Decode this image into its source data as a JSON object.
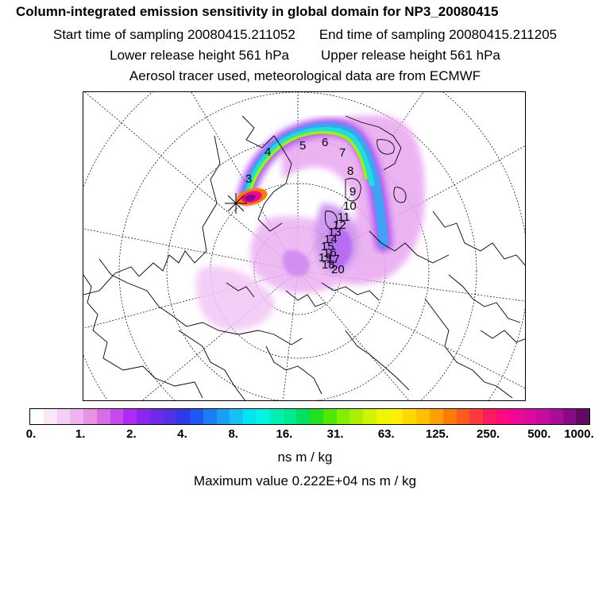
{
  "title": "Column-integrated emission sensitivity in global domain for NP3_20080415",
  "sampling": {
    "start_label": "Start time of sampling 20080415.211052",
    "end_label": "End time of sampling 20080415.211205"
  },
  "release": {
    "lower_label": "Lower release height  561 hPa",
    "upper_label": "Upper release height  561 hPa"
  },
  "info": "Aerosol tracer used, meteorological data are from ECMWF",
  "map": {
    "projection": "north-polar-stereographic",
    "release_marker": "release-point-star-icon",
    "trajectory_labels": [
      "3",
      "4",
      "5",
      "6",
      "7",
      "8",
      "9",
      "10",
      "11",
      "12",
      "13",
      "14",
      "15",
      "16",
      "17",
      "18",
      "19",
      "20"
    ]
  },
  "colorbar": {
    "colors": [
      "#ffffff",
      "#fbe6fb",
      "#f5cef5",
      "#efb4ef",
      "#e693e6",
      "#d66ce6",
      "#c64bef",
      "#b129f5",
      "#8a26ef",
      "#6e2ae6",
      "#5032e6",
      "#2d3ae8",
      "#1f58f0",
      "#1b7cf4",
      "#17a0f6",
      "#14c3f6",
      "#00e6f0",
      "#00f6e0",
      "#00f0b4",
      "#00e890",
      "#00e060",
      "#20e020",
      "#4ee800",
      "#80f000",
      "#a8f000",
      "#d0f400",
      "#eef600",
      "#fff000",
      "#ffd800",
      "#ffc000",
      "#ffa000",
      "#ff7c00",
      "#ff5a1e",
      "#ff3a3e",
      "#ff1a60",
      "#ff0a7e",
      "#f00894",
      "#de0a9e",
      "#c40c9e",
      "#a80c98",
      "#880a88",
      "#600a60"
    ],
    "tick_labels": [
      "0.",
      "1.",
      "2.",
      "4.",
      "8.",
      "16.",
      "31.",
      "63.",
      "125.",
      "250.",
      "500.",
      "1000."
    ],
    "unit": "ns m / kg"
  },
  "maximum_label": "Maximum value  0.222E+04 ns m / kg"
}
